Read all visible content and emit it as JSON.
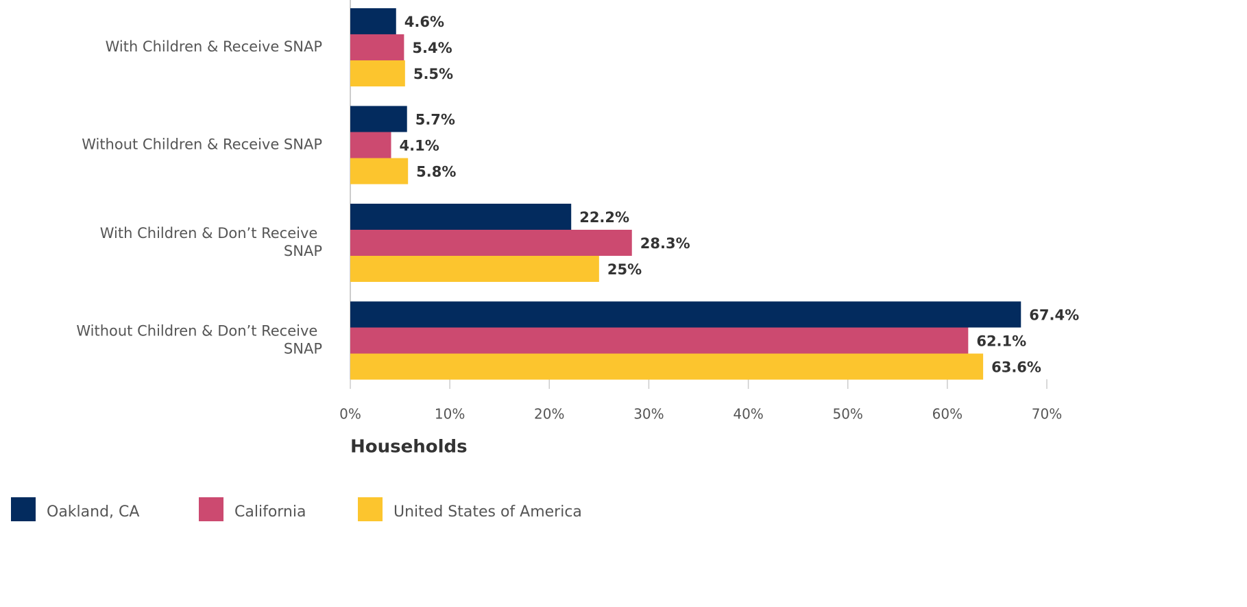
{
  "chart_data": {
    "type": "hbar",
    "categories": [
      "With Children & Receive SNAP",
      "Without Children & Receive SNAP",
      "With Children & Don’t Receive SNAP",
      "Without Children & Don’t Receive SNAP"
    ],
    "series": [
      {
        "name": "Oakland, CA",
        "color": "#032b5e",
        "values": [
          4.6,
          5.7,
          22.2,
          67.4
        ],
        "value_labels": [
          "4.6%",
          "5.7%",
          "22.2%",
          "67.4%"
        ]
      },
      {
        "name": "California",
        "color": "#cc4a70",
        "values": [
          5.4,
          4.1,
          28.3,
          62.1
        ],
        "value_labels": [
          "5.4%",
          "4.1%",
          "28.3%",
          "62.1%"
        ]
      },
      {
        "name": "United States of America",
        "color": "#fcc52e",
        "values": [
          5.5,
          5.8,
          25,
          63.6
        ],
        "value_labels": [
          "5.5%",
          "5.8%",
          "25%",
          "63.6%"
        ]
      }
    ],
    "xlabel": "Households",
    "xlim": [
      0,
      70
    ],
    "xticks": [
      {
        "value": 0,
        "label": "0%"
      },
      {
        "value": 10,
        "label": "10%"
      },
      {
        "value": 20,
        "label": "20%"
      },
      {
        "value": 30,
        "label": "30%"
      },
      {
        "value": 40,
        "label": "40%"
      },
      {
        "value": 50,
        "label": "50%"
      },
      {
        "value": 60,
        "label": "60%"
      },
      {
        "value": 70,
        "label": "70%"
      }
    ],
    "grid": false,
    "legend": "bottom-left"
  }
}
